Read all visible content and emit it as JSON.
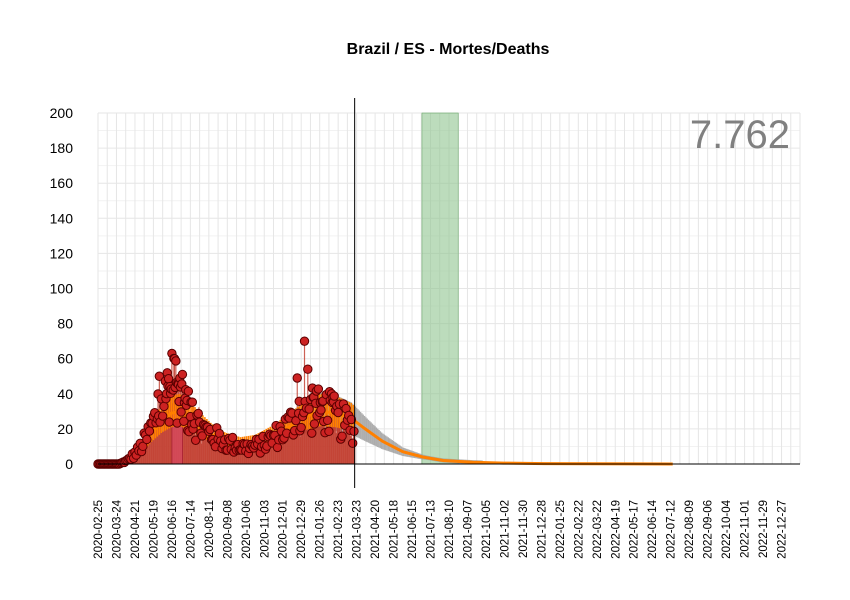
{
  "chart_data": {
    "type": "line",
    "title": "Brazil / ES - Mortes/Deaths",
    "total_label": "7.762",
    "ylim": [
      0,
      200
    ],
    "y_ticks": [
      0,
      20,
      40,
      60,
      80,
      100,
      120,
      140,
      160,
      180,
      200
    ],
    "x_range": [
      "2020-02-25",
      "2023-01-24"
    ],
    "x_ticks": [
      "2020-02-25",
      "2020-03-24",
      "2020-04-21",
      "2020-05-19",
      "2020-06-16",
      "2020-07-14",
      "2020-08-11",
      "2020-09-08",
      "2020-10-06",
      "2020-11-03",
      "2020-12-01",
      "2020-12-29",
      "2021-01-26",
      "2021-02-23",
      "2021-03-23",
      "2021-04-20",
      "2021-05-18",
      "2021-06-15",
      "2021-07-13",
      "2021-08-10",
      "2021-09-07",
      "2021-10-05",
      "2021-11-02",
      "2021-11-30",
      "2021-12-28",
      "2022-01-25",
      "2022-02-22",
      "2022-03-22",
      "2022-04-19",
      "2022-05-17",
      "2022-06-14",
      "2022-07-12",
      "2022-08-09",
      "2022-09-06",
      "2022-10-04",
      "2022-11-01",
      "2022-11-29",
      "2022-12-27"
    ],
    "grid": true,
    "current_date_line": "2021-03-20",
    "highlight_period": {
      "start": "2021-06-30",
      "end": "2021-08-24"
    },
    "highlight_bar": {
      "start": "2020-06-16",
      "end": "2020-07-02",
      "value": 30
    },
    "daily_deaths_anchor_points": [
      [
        "2020-02-25",
        0
      ],
      [
        "2020-03-28",
        0
      ],
      [
        "2020-04-10",
        2
      ],
      [
        "2020-04-25",
        7
      ],
      [
        "2020-05-08",
        14
      ],
      [
        "2020-05-20",
        24
      ],
      [
        "2020-06-01",
        33
      ],
      [
        "2020-06-12",
        42
      ],
      [
        "2020-06-22",
        43
      ],
      [
        "2020-07-05",
        33
      ],
      [
        "2020-07-20",
        25
      ],
      [
        "2020-08-05",
        19
      ],
      [
        "2020-08-25",
        14
      ],
      [
        "2020-09-15",
        11
      ],
      [
        "2020-10-10",
        9
      ],
      [
        "2020-11-01",
        11
      ],
      [
        "2020-11-25",
        17
      ],
      [
        "2020-12-20",
        25
      ],
      [
        "2021-01-15",
        30
      ],
      [
        "2021-02-05",
        30
      ],
      [
        "2021-02-25",
        25
      ],
      [
        "2021-03-20",
        20
      ]
    ],
    "daily_deaths_extremes": [
      [
        "2020-06-16",
        63
      ],
      [
        "2020-06-20",
        60
      ],
      [
        "2020-05-28",
        50
      ],
      [
        "2021-01-03",
        70
      ],
      [
        "2021-01-08",
        54
      ],
      [
        "2020-12-23",
        49
      ],
      [
        "2021-02-15",
        38
      ]
    ],
    "trend": {
      "color": "#ff8000",
      "points": [
        [
          "2020-02-25",
          0
        ],
        [
          "2020-03-28",
          0
        ],
        [
          "2020-04-15",
          3
        ],
        [
          "2020-05-01",
          8
        ],
        [
          "2020-05-15",
          17
        ],
        [
          "2020-06-01",
          25
        ],
        [
          "2020-06-15",
          29
        ],
        [
          "2020-06-28",
          30
        ],
        [
          "2020-07-12",
          27
        ],
        [
          "2020-07-28",
          22
        ],
        [
          "2020-08-15",
          17
        ],
        [
          "2020-09-05",
          13
        ],
        [
          "2020-09-28",
          11
        ],
        [
          "2020-10-20",
          12
        ],
        [
          "2020-11-15",
          16
        ],
        [
          "2020-12-10",
          21
        ],
        [
          "2021-01-05",
          27
        ],
        [
          "2021-01-28",
          30
        ],
        [
          "2021-02-20",
          29
        ],
        [
          "2021-03-15",
          26
        ],
        [
          "2021-04-05",
          20
        ],
        [
          "2021-05-01",
          13
        ],
        [
          "2021-06-01",
          7
        ],
        [
          "2021-07-01",
          4
        ],
        [
          "2021-08-01",
          2
        ],
        [
          "2021-09-15",
          1
        ],
        [
          "2021-11-01",
          0.5
        ],
        [
          "2022-01-01",
          0.2
        ],
        [
          "2022-07-15",
          0
        ]
      ]
    },
    "colors": {
      "points_fill": "#cc2222",
      "points_stroke": "#5a0000",
      "daily_bars": "#c0392b",
      "forecast_band": "#a0a0a0",
      "highlight": "#8fc48f",
      "highlight_bar": "#d64a5f",
      "grid": "#e6e6e6",
      "total_label": "#808080"
    }
  }
}
